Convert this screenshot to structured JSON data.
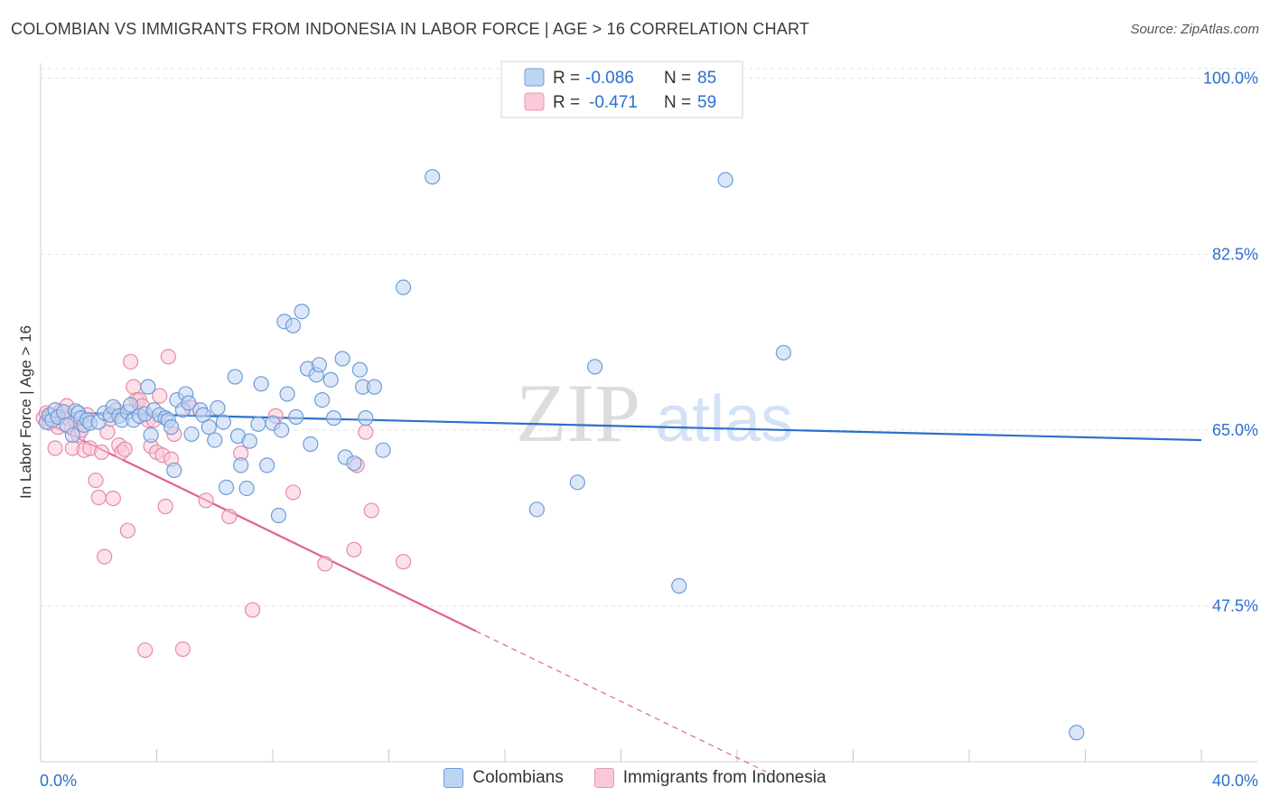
{
  "header": {
    "title": "COLOMBIAN VS IMMIGRANTS FROM INDONESIA IN LABOR FORCE | AGE > 16 CORRELATION CHART",
    "source": "Source: ZipAtlas.com"
  },
  "watermark": {
    "zip": "ZIP",
    "atlas": "atlas"
  },
  "colors": {
    "blue_fill": "#bdd4f3",
    "blue_stroke": "#6f9bd8",
    "blue_line": "#2d6fcc",
    "pink_fill": "#f9c9d7",
    "pink_stroke": "#e68aaa",
    "pink_line": "#e0628e",
    "axis_label": "#2d6fcc"
  },
  "chart_data": {
    "type": "scatter",
    "title": "COLOMBIAN VS IMMIGRANTS FROM INDONESIA IN LABOR FORCE | AGE > 16 CORRELATION CHART",
    "xlabel": "",
    "ylabel": "In Labor Force | Age > 16",
    "xlim": [
      0,
      40
    ],
    "ylim": [
      32,
      101.5
    ],
    "x_tick_labels": [
      "0.0%",
      "40.0%"
    ],
    "y_ticks": [
      {
        "value": 100.0,
        "label": "100.0%"
      },
      {
        "value": 82.5,
        "label": "82.5%"
      },
      {
        "value": 65.0,
        "label": "65.0%"
      },
      {
        "value": 47.5,
        "label": "47.5%"
      }
    ],
    "grid": true,
    "legend_position": "top-center",
    "stats": [
      {
        "r_label": "R =",
        "r": "-0.086",
        "n_label": "N =",
        "n": "85"
      },
      {
        "r_label": "R =",
        "r": "-0.471",
        "n_label": "N =",
        "n": "59"
      }
    ],
    "series": [
      {
        "name": "Colombians",
        "color": "blue",
        "trend": {
          "x0": 0,
          "y0": 66.8,
          "x1": 40,
          "y1": 64.0,
          "solid_until": 40
        },
        "points": [
          [
            0.2,
            65.8
          ],
          [
            0.3,
            66.5
          ],
          [
            0.4,
            66.0
          ],
          [
            0.5,
            67.0
          ],
          [
            0.6,
            66.3
          ],
          [
            0.8,
            66.8
          ],
          [
            0.9,
            65.5
          ],
          [
            1.1,
            64.5
          ],
          [
            1.2,
            66.9
          ],
          [
            1.3,
            66.7
          ],
          [
            1.4,
            66.2
          ],
          [
            1.5,
            65.5
          ],
          [
            1.6,
            66.0
          ],
          [
            1.7,
            65.7
          ],
          [
            2.0,
            65.8
          ],
          [
            2.2,
            66.7
          ],
          [
            2.4,
            66.5
          ],
          [
            2.5,
            67.3
          ],
          [
            2.7,
            66.4
          ],
          [
            2.8,
            66.0
          ],
          [
            3.0,
            66.8
          ],
          [
            3.1,
            67.5
          ],
          [
            3.2,
            66.0
          ],
          [
            3.4,
            66.4
          ],
          [
            3.6,
            66.6
          ],
          [
            3.7,
            69.3
          ],
          [
            3.8,
            64.5
          ],
          [
            3.9,
            67.0
          ],
          [
            4.1,
            66.5
          ],
          [
            4.3,
            66.2
          ],
          [
            4.4,
            66.0
          ],
          [
            4.5,
            65.3
          ],
          [
            4.6,
            61.0
          ],
          [
            4.7,
            68.0
          ],
          [
            4.9,
            67.0
          ],
          [
            5.0,
            68.6
          ],
          [
            5.1,
            67.7
          ],
          [
            5.2,
            64.6
          ],
          [
            5.5,
            67.0
          ],
          [
            5.6,
            66.5
          ],
          [
            5.8,
            65.3
          ],
          [
            6.0,
            64.0
          ],
          [
            6.1,
            67.2
          ],
          [
            6.3,
            65.8
          ],
          [
            6.4,
            59.3
          ],
          [
            6.7,
            70.3
          ],
          [
            6.8,
            64.4
          ],
          [
            6.9,
            61.5
          ],
          [
            7.1,
            59.2
          ],
          [
            7.2,
            63.9
          ],
          [
            7.5,
            65.6
          ],
          [
            7.6,
            69.6
          ],
          [
            7.8,
            61.5
          ],
          [
            8.0,
            65.7
          ],
          [
            8.2,
            56.5
          ],
          [
            8.3,
            65.0
          ],
          [
            8.4,
            75.8
          ],
          [
            8.5,
            68.6
          ],
          [
            8.7,
            75.4
          ],
          [
            8.8,
            66.3
          ],
          [
            9.0,
            76.8
          ],
          [
            9.2,
            71.1
          ],
          [
            9.3,
            63.6
          ],
          [
            9.5,
            70.5
          ],
          [
            9.6,
            71.5
          ],
          [
            9.7,
            68.0
          ],
          [
            10.0,
            70.0
          ],
          [
            10.1,
            66.2
          ],
          [
            10.4,
            72.1
          ],
          [
            10.5,
            62.3
          ],
          [
            10.8,
            61.7
          ],
          [
            11.0,
            71.0
          ],
          [
            11.1,
            69.3
          ],
          [
            11.2,
            66.2
          ],
          [
            11.5,
            69.3
          ],
          [
            11.8,
            63.0
          ],
          [
            12.5,
            79.2
          ],
          [
            13.5,
            90.2
          ],
          [
            17.1,
            57.1
          ],
          [
            18.5,
            59.8
          ],
          [
            19.1,
            71.3
          ],
          [
            22.0,
            49.5
          ],
          [
            23.6,
            89.9
          ],
          [
            25.6,
            72.7
          ],
          [
            35.7,
            34.9
          ]
        ]
      },
      {
        "name": "Immigrants from Indonesia",
        "color": "pink",
        "trend": {
          "x0": 0,
          "y0": 66.0,
          "x1": 25.0,
          "y1": 31.0,
          "solid_until": 15.0
        },
        "points": [
          [
            0.1,
            66.2
          ],
          [
            0.2,
            66.7
          ],
          [
            0.3,
            65.7
          ],
          [
            0.4,
            66.5
          ],
          [
            0.5,
            63.2
          ],
          [
            0.6,
            65.3
          ],
          [
            0.7,
            66.9
          ],
          [
            0.8,
            66.3
          ],
          [
            0.9,
            67.4
          ],
          [
            1.0,
            66.1
          ],
          [
            1.1,
            63.2
          ],
          [
            1.2,
            66.0
          ],
          [
            1.3,
            64.5
          ],
          [
            1.4,
            65.0
          ],
          [
            1.5,
            63.0
          ],
          [
            1.6,
            66.5
          ],
          [
            1.7,
            63.2
          ],
          [
            1.9,
            60.0
          ],
          [
            2.0,
            58.3
          ],
          [
            2.1,
            62.8
          ],
          [
            2.2,
            52.4
          ],
          [
            2.3,
            64.8
          ],
          [
            2.4,
            66.1
          ],
          [
            2.5,
            58.2
          ],
          [
            2.6,
            67.0
          ],
          [
            2.7,
            63.5
          ],
          [
            2.8,
            62.8
          ],
          [
            2.9,
            63.1
          ],
          [
            3.0,
            55.0
          ],
          [
            3.1,
            71.8
          ],
          [
            3.2,
            69.3
          ],
          [
            3.3,
            68.0
          ],
          [
            3.4,
            68.0
          ],
          [
            3.5,
            67.4
          ],
          [
            3.6,
            43.1
          ],
          [
            3.7,
            66.0
          ],
          [
            3.8,
            63.4
          ],
          [
            3.9,
            66.0
          ],
          [
            4.0,
            62.8
          ],
          [
            4.1,
            68.4
          ],
          [
            4.2,
            62.5
          ],
          [
            4.3,
            57.4
          ],
          [
            4.4,
            72.3
          ],
          [
            4.5,
            62.1
          ],
          [
            4.6,
            64.6
          ],
          [
            4.9,
            43.2
          ],
          [
            5.2,
            67.2
          ],
          [
            5.7,
            58.0
          ],
          [
            6.5,
            56.4
          ],
          [
            6.9,
            62.7
          ],
          [
            7.3,
            47.1
          ],
          [
            8.1,
            66.4
          ],
          [
            8.7,
            58.8
          ],
          [
            9.8,
            51.7
          ],
          [
            10.8,
            53.1
          ],
          [
            10.9,
            61.5
          ],
          [
            11.2,
            64.8
          ],
          [
            11.4,
            57.0
          ],
          [
            12.5,
            51.9
          ]
        ]
      }
    ]
  }
}
